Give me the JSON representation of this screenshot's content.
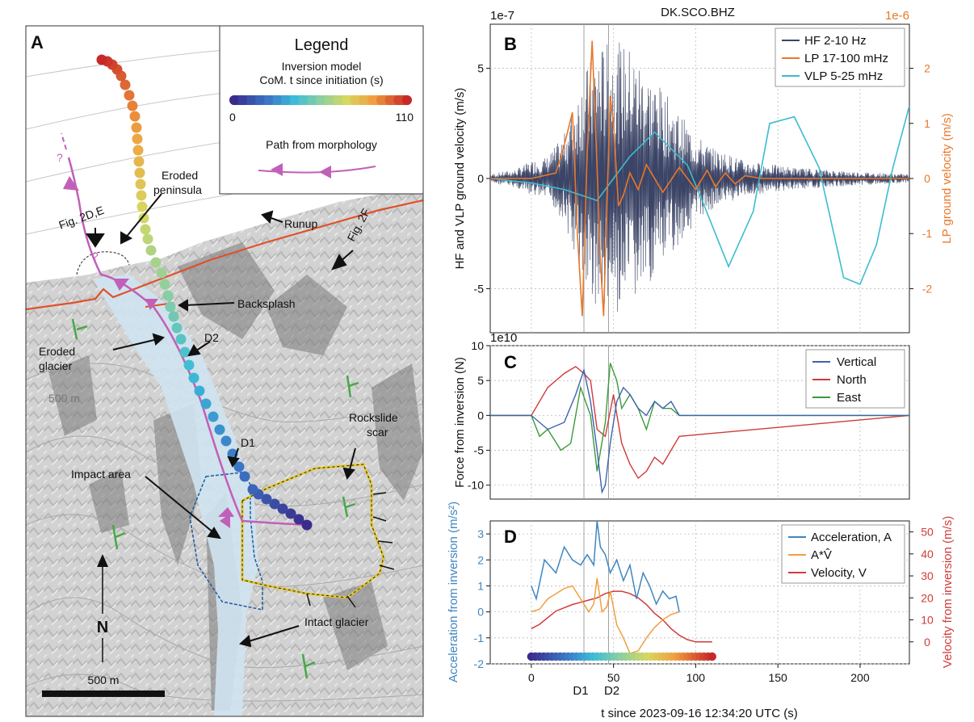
{
  "panel_a": {
    "panel_letter": "A",
    "legend": {
      "title": "Legend",
      "model_line1": "Inversion model",
      "model_line2": "CoM. t since initiation (s)",
      "cbar_min": "0",
      "cbar_max": "110",
      "path_title": "Path from morphology"
    },
    "labels": {
      "fig2de": "Fig. 2D,E",
      "fig2f": "Fig. 2F",
      "eroded_peninsula_1": "Eroded",
      "eroded_peninsula_2": "peninsula",
      "runup": "Runup",
      "backsplash": "Backsplash",
      "d2": "D2",
      "d1": "D1",
      "eroded_glacier_1": "Eroded",
      "eroded_glacier_2": "glacier",
      "contour_500": "500 m",
      "rockslide_1": "Rockslide",
      "rockslide_2": "scar",
      "impact_area": "Impact area",
      "intact_glacier": "Intact glacier",
      "north": "N",
      "scalebar": "500 m",
      "question1": "?",
      "question2": "?"
    },
    "colors": {
      "path": "#c060b8",
      "coast": "#e0502a",
      "green_marks": "#48a848"
    }
  },
  "panel_b": {
    "panel_letter": "B",
    "station": "DK.SCO.BHZ",
    "left_exponent": "1e-7",
    "right_exponent": "1e-6",
    "ylabel_left": "HF and VLP ground velocity (m/s)",
    "ylabel_right": "LP ground velocity (m/s)",
    "yticks_left": [
      "5",
      "0",
      "-5"
    ],
    "yticks_right": [
      "2",
      "1",
      "0",
      "-1",
      "-2"
    ],
    "legend": [
      "HF 2-10 Hz",
      "LP 17-100 mHz",
      "VLP 5-25 mHz"
    ]
  },
  "panel_c": {
    "panel_letter": "C",
    "exponent": "1e10",
    "ylabel": "Force from inversion (N)",
    "yticks": [
      "10",
      "5",
      "0",
      "-5",
      "-10"
    ],
    "legend": [
      "Vertical",
      "North",
      "East"
    ]
  },
  "panel_d": {
    "panel_letter": "D",
    "ylabel_left": "Acceleration from inversion (m/s²)",
    "ylabel_right": "Velocity from inversion (m/s)",
    "yticks_left": [
      "3",
      "2",
      "1",
      "0",
      "-1",
      "-2"
    ],
    "yticks_right": [
      "50",
      "40",
      "30",
      "20",
      "10",
      "0"
    ],
    "legend": [
      "Acceleration, A",
      "A*V̂",
      "Velocity, V"
    ],
    "xticks": [
      "0",
      "50",
      "100",
      "150",
      "200"
    ],
    "xlabel": "t since 2023-09-16 12:34:20 UTC (s)",
    "d1": "D1",
    "d2": "D2"
  },
  "chart_data": [
    {
      "type": "line",
      "title": "DK.SCO.BHZ",
      "xlabel": "t since 2023-09-16 12:34:20 UTC (s)",
      "ylabel": "HF and VLP ground velocity (m/s)",
      "y2label": "LP ground velocity (m/s)",
      "xlim": [
        -25,
        230
      ],
      "ylim": [
        -7e-07,
        7e-07
      ],
      "y2lim": [
        -2.8e-06,
        2.8e-06
      ],
      "grid": true,
      "legend_position": "top-right",
      "vlines": [
        {
          "name": "D1",
          "x": 32
        },
        {
          "name": "D2",
          "x": 47
        }
      ],
      "series": [
        {
          "name": "HF 2-10 Hz",
          "color": "#3b4466",
          "axis": "left",
          "envelope_x": [
            -25,
            -10,
            0,
            10,
            20,
            30,
            40,
            50,
            60,
            70,
            80,
            90,
            100,
            110,
            130,
            160,
            200,
            230
          ],
          "envelope_amp": [
            2e-08,
            4e-08,
            8e-08,
            1e-07,
            2e-07,
            4.5e-07,
            6e-07,
            6.3e-07,
            6e-07,
            5e-07,
            4e-07,
            3e-07,
            2e-07,
            1.4e-07,
            8e-08,
            5e-08,
            3e-08,
            2e-08
          ]
        },
        {
          "name": "LP 17-100 mHz",
          "color": "#e8782a",
          "axis": "right",
          "x": [
            -25,
            0,
            15,
            20,
            25,
            28,
            31,
            34,
            37,
            40,
            42,
            44,
            46,
            48,
            50,
            53,
            56,
            60,
            65,
            70,
            80,
            90,
            100,
            107,
            112,
            118,
            124,
            130,
            140,
            150,
            170,
            200,
            230
          ],
          "y": [
            0,
            0,
            1e-07,
            6e-07,
            1.2e-06,
            -1e-06,
            -2.5e-06,
            5e-07,
            2.5e-06,
            2e-07,
            -1.5e-06,
            -2.5e-06,
            -5e-07,
            1.5e-06,
            1e-06,
            -5e-07,
            -3e-07,
            1e-07,
            -2e-07,
            2.5e-07,
            -2.5e-07,
            2e-07,
            -2e-07,
            1.5e-07,
            -1.5e-07,
            1e-07,
            -1e-07,
            5e-08,
            0,
            0,
            0,
            0,
            0
          ]
        },
        {
          "name": "VLP 5-25 mHz",
          "color": "#3cbcd0",
          "axis": "left",
          "x": [
            -25,
            0,
            20,
            40,
            60,
            75,
            95,
            105,
            120,
            135,
            145,
            160,
            175,
            190,
            200,
            210,
            220,
            230
          ],
          "y": [
            0,
            -2e-08,
            -5e-08,
            -1e-07,
            1e-07,
            2.1e-07,
            6e-08,
            -1.2e-07,
            -4e-07,
            -1.5e-07,
            2.5e-07,
            2.8e-07,
            5e-08,
            -4.5e-07,
            -4.8e-07,
            -3e-07,
            5e-08,
            3.3e-07
          ]
        }
      ]
    },
    {
      "type": "line",
      "xlabel": "t since 2023-09-16 12:34:20 UTC (s)",
      "ylabel": "Force from inversion (N)",
      "xlim": [
        -25,
        230
      ],
      "ylim": [
        -120000000000.0,
        100000000000.0
      ],
      "grid": true,
      "legend_position": "top-right",
      "series": [
        {
          "name": "Vertical",
          "color": "#3f62b0",
          "x": [
            -25,
            0,
            10,
            20,
            27,
            32,
            36,
            40,
            43,
            45,
            48,
            52,
            56,
            60,
            65,
            70,
            75,
            80,
            85,
            90,
            230
          ],
          "y": [
            0,
            0,
            -2,
            -1,
            3,
            6.5,
            2,
            -5,
            -11,
            -10,
            -4,
            2,
            4,
            3,
            1,
            0,
            2,
            1,
            2,
            0,
            0
          ]
        },
        {
          "name": "North",
          "color": "#d03a3a",
          "x": [
            -25,
            0,
            10,
            20,
            27,
            32,
            36,
            40,
            45,
            50,
            55,
            60,
            65,
            70,
            75,
            80,
            85,
            90,
            230
          ],
          "y": [
            0,
            0,
            4,
            6,
            7,
            6,
            5,
            -2,
            -3,
            3,
            -4,
            -7,
            -9,
            -8,
            -6,
            -7,
            -5,
            -3,
            0
          ]
        },
        {
          "name": "East",
          "color": "#3b9a3b",
          "x": [
            -25,
            0,
            5,
            10,
            18,
            24,
            30,
            36,
            40,
            45,
            48,
            52,
            55,
            60,
            65,
            70,
            75,
            80,
            85,
            90,
            230
          ],
          "y": [
            0,
            0,
            -3,
            -2,
            -5,
            -4,
            4,
            0,
            -8,
            -1,
            7.5,
            5,
            1,
            3,
            1,
            -2,
            2,
            1,
            1,
            0,
            0
          ]
        }
      ]
    },
    {
      "type": "line",
      "xlabel": "t since 2023-09-16 12:34:20 UTC (s)",
      "ylabel": "Acceleration from inversion (m/s²)",
      "y2label": "Velocity from inversion (m/s)",
      "xlim": [
        -25,
        230
      ],
      "ylim": [
        -2,
        3.5
      ],
      "y2lim": [
        -10,
        55
      ],
      "grid": true,
      "legend_position": "top-right",
      "series": [
        {
          "name": "Acceleration, A",
          "color": "#3f86c0",
          "axis": "left",
          "x": [
            0,
            3,
            8,
            15,
            20,
            25,
            30,
            34,
            38,
            40,
            42,
            45,
            48,
            52,
            56,
            60,
            64,
            68,
            72,
            76,
            80,
            84,
            88,
            90
          ],
          "y": [
            1.0,
            0.5,
            2.0,
            1.5,
            2.5,
            2.0,
            1.8,
            2.2,
            1.8,
            3.5,
            2.5,
            2.2,
            1.5,
            2.0,
            1.2,
            1.8,
            0.5,
            1.5,
            1.0,
            0.3,
            0.8,
            0.5,
            0.6,
            0
          ]
        },
        {
          "name": "A*V̂",
          "color": "#f0a040",
          "axis": "left",
          "x": [
            0,
            5,
            10,
            15,
            20,
            25,
            30,
            35,
            38,
            40,
            43,
            46,
            48,
            52,
            56,
            60,
            65,
            70,
            75,
            80,
            85,
            90
          ],
          "y": [
            0,
            0.1,
            0.5,
            0.7,
            0.9,
            1.0,
            0.5,
            0,
            0.3,
            1.3,
            0,
            0.2,
            0.8,
            -0.5,
            -1.0,
            -1.6,
            -1.5,
            -1.0,
            -0.6,
            -0.3,
            -0.1,
            0
          ]
        },
        {
          "name": "Velocity, V",
          "color": "#d23a3a",
          "axis": "right",
          "x": [
            0,
            5,
            10,
            15,
            20,
            25,
            30,
            35,
            40,
            45,
            50,
            55,
            60,
            65,
            70,
            75,
            80,
            85,
            90,
            95,
            100,
            105,
            110
          ],
          "y": [
            6,
            8,
            11,
            14,
            15.5,
            17,
            18,
            19,
            20,
            22,
            23,
            23,
            22,
            20,
            17,
            13,
            10,
            6,
            3,
            1,
            0,
            0,
            0
          ]
        }
      ]
    }
  ]
}
